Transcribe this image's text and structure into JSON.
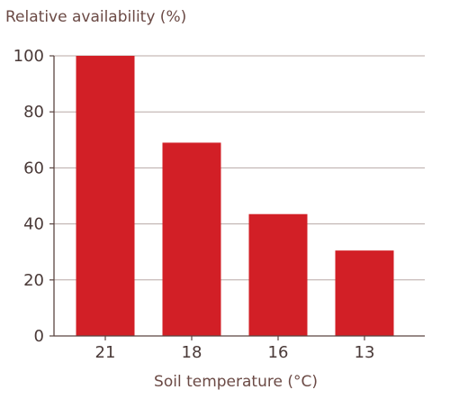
{
  "chart_data": {
    "type": "bar",
    "title": "",
    "ylabel": "Relative availability (%)",
    "xlabel": "Soil temperature (°C)",
    "categories": [
      "21",
      "18",
      "16",
      "13"
    ],
    "values": [
      100,
      69,
      43.5,
      30.5
    ],
    "ylim": [
      0,
      100
    ],
    "yticks": [
      0,
      20,
      40,
      60,
      80,
      100
    ],
    "grid": true,
    "bar_color": "#d21f26",
    "grid_color": "#b8a9a6",
    "axis_color": "#5a4541"
  }
}
